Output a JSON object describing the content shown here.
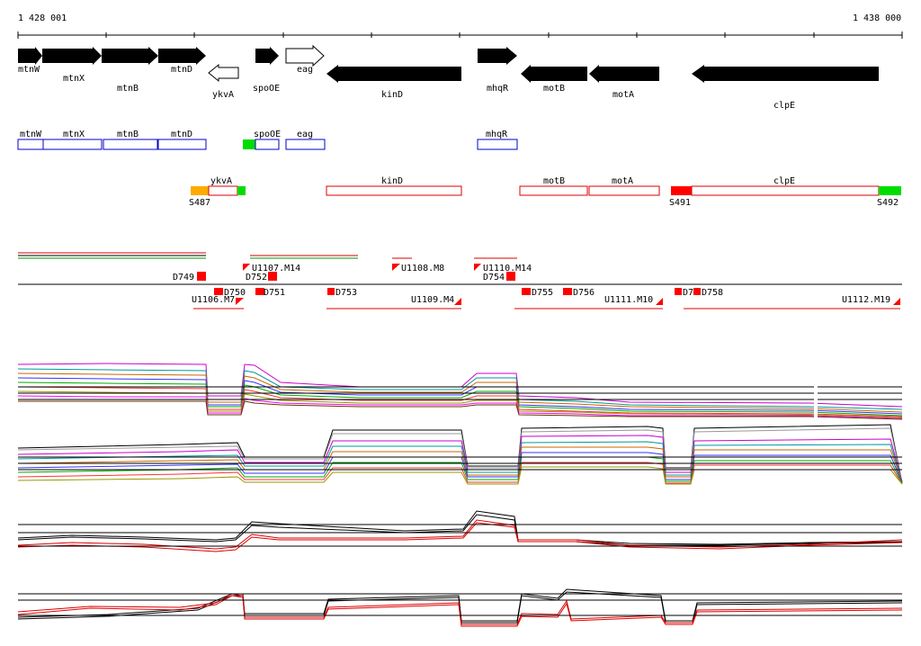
{
  "coords": {
    "start": "1 428 001",
    "end": "1 438 000"
  },
  "genes": {
    "mtnW": "mtnW",
    "mtnX": "mtnX",
    "mtnB": "mtnB",
    "mtnD": "mtnD",
    "ykvA": "ykvA",
    "spoOE": "spoOE",
    "eag": "eag",
    "kinD": "kinD",
    "mhqR": "mhqR",
    "motB": "motB",
    "motA": "motA",
    "clpE": "clpE"
  },
  "segments": {
    "S487": "S487",
    "S491": "S491",
    "S492": "S492"
  },
  "features": {
    "D749": "D749",
    "D750": "D750",
    "D751": "D751",
    "D752": "D752",
    "D753": "D753",
    "D754": "D754",
    "D755": "D755",
    "D756": "D756",
    "D757": "D7",
    "D758": "D758",
    "U1106": "U1106.M7",
    "U1107": "U1107.M14",
    "U1108": "U1108.M8",
    "U1109": "U1109.M4",
    "U1110": "U1110.M14",
    "U1111": "U1111.M10",
    "U1112": "U1112.M19"
  },
  "colors": {
    "gene_fill": "#000000",
    "blue_box": "#0000cc",
    "red_box": "#dd0000",
    "orange": "#ffaa00",
    "green": "#00dd00",
    "red_fill": "#ff0000"
  }
}
